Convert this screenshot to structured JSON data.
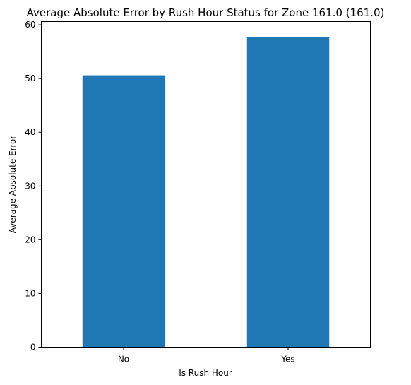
{
  "chart_data": {
    "type": "bar",
    "title": "Average Absolute Error by Rush Hour Status for Zone 161.0 (161.0)",
    "xlabel": "Is Rush Hour",
    "ylabel": "Average Absolute Error",
    "categories": [
      "No",
      "Yes"
    ],
    "values": [
      50.6,
      57.7
    ],
    "ylim": [
      0,
      60.6
    ],
    "yticks": [
      0,
      10,
      20,
      30,
      40,
      50,
      60
    ],
    "grid": false,
    "legend": "none",
    "bar_color": "#1f77b4"
  }
}
